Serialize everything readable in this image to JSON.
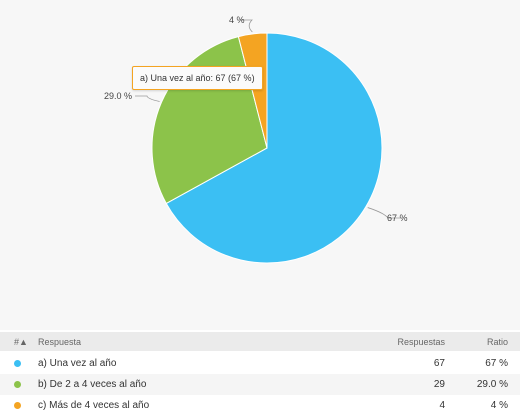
{
  "chart_data": {
    "type": "pie",
    "categories": [
      "a) Una vez al año",
      "b) De 2 a 4 veces al año",
      "c) Más de 4 veces al año"
    ],
    "values": [
      67,
      29,
      4
    ],
    "slice_labels": [
      "67 %",
      "29.0 %",
      "4 %"
    ],
    "colors": [
      "#3bbff3",
      "#8cc34a",
      "#f4a422"
    ],
    "tooltip": "a) Una vez al año: 67 (67 %)"
  },
  "table": {
    "headers": {
      "num": "#▲",
      "resp": "Respuesta",
      "count": "Respuestas",
      "ratio": "Ratio"
    },
    "rows": [
      {
        "label": "a) Una vez al año",
        "count": "67",
        "ratio": "67 %"
      },
      {
        "label": "b) De 2 a 4 veces al año",
        "count": "29",
        "ratio": "29.0 %"
      },
      {
        "label": "c) Más de 4 veces al año",
        "count": "4",
        "ratio": "4 %"
      }
    ]
  }
}
